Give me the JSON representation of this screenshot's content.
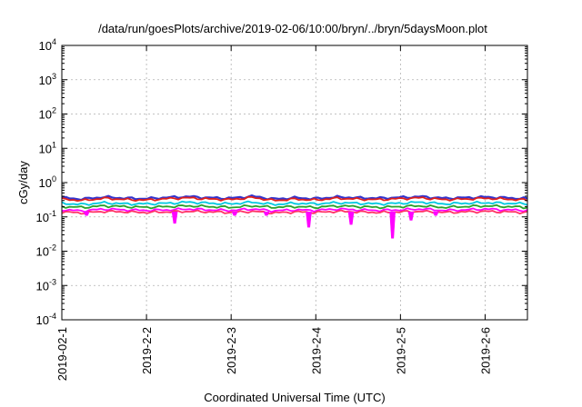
{
  "chart_data": {
    "type": "line",
    "title": "/data/run/goesPlots/archive/2019-02-06/10:00/bryn/../bryn/5daysMoon.plot",
    "xlabel": "Coordinated Universal Time (UTC)",
    "ylabel": "cGy/day",
    "yscale": "log",
    "ylim": [
      0.0001,
      10000
    ],
    "xlim": [
      "2019-02-01T00:00",
      "2019-02-06T12:00"
    ],
    "grid": true,
    "y_ticks": [
      {
        "base": "10",
        "exp": "-4",
        "value": 0.0001
      },
      {
        "base": "10",
        "exp": "-3",
        "value": 0.001
      },
      {
        "base": "10",
        "exp": "-2",
        "value": 0.01
      },
      {
        "base": "10",
        "exp": "-1",
        "value": 0.1
      },
      {
        "base": "10",
        "exp": "0",
        "value": 1
      },
      {
        "base": "10",
        "exp": "1",
        "value": 10
      },
      {
        "base": "10",
        "exp": "2",
        "value": 100
      },
      {
        "base": "10",
        "exp": "3",
        "value": 1000
      },
      {
        "base": "10",
        "exp": "4",
        "value": 10000
      }
    ],
    "x_ticks": [
      {
        "label": "2019-02-1",
        "value": "2019-02-01T00:00"
      },
      {
        "label": "2019-2-2",
        "value": "2019-02-02T00:00"
      },
      {
        "label": "2019-2-3",
        "value": "2019-02-03T00:00"
      },
      {
        "label": "2019-2-4",
        "value": "2019-02-04T00:00"
      },
      {
        "label": "2019-2-5",
        "value": "2019-02-05T00:00"
      },
      {
        "label": "2019-2-6",
        "value": "2019-02-06T00:00"
      }
    ],
    "x": [
      "2019-02-01T00:00",
      "2019-02-01T06:00",
      "2019-02-01T12:00",
      "2019-02-01T18:00",
      "2019-02-02T00:00",
      "2019-02-02T06:00",
      "2019-02-02T12:00",
      "2019-02-02T18:00",
      "2019-02-03T00:00",
      "2019-02-03T06:00",
      "2019-02-03T12:00",
      "2019-02-03T18:00",
      "2019-02-04T00:00",
      "2019-02-04T06:00",
      "2019-02-04T12:00",
      "2019-02-04T18:00",
      "2019-02-05T00:00",
      "2019-02-05T06:00",
      "2019-02-05T12:00",
      "2019-02-05T18:00",
      "2019-02-06T00:00",
      "2019-02-06T06:00",
      "2019-02-06T12:00"
    ],
    "series": [
      {
        "color": "#3333cc",
        "values": [
          0.36,
          0.33,
          0.38,
          0.35,
          0.34,
          0.37,
          0.39,
          0.36,
          0.35,
          0.4,
          0.33,
          0.36,
          0.34,
          0.38,
          0.36,
          0.35,
          0.37,
          0.39,
          0.35,
          0.36,
          0.38,
          0.36,
          0.34
        ]
      },
      {
        "color": "#e0201b",
        "values": [
          0.33,
          0.3,
          0.35,
          0.32,
          0.31,
          0.34,
          0.36,
          0.33,
          0.32,
          0.37,
          0.3,
          0.33,
          0.31,
          0.35,
          0.33,
          0.32,
          0.34,
          0.36,
          0.32,
          0.33,
          0.35,
          0.33,
          0.31
        ]
      },
      {
        "color": "#00c8e0",
        "values": [
          0.25,
          0.23,
          0.26,
          0.24,
          0.24,
          0.25,
          0.27,
          0.25,
          0.24,
          0.27,
          0.23,
          0.25,
          0.24,
          0.26,
          0.25,
          0.24,
          0.25,
          0.27,
          0.24,
          0.25,
          0.26,
          0.25,
          0.24
        ]
      },
      {
        "color": "#2aa02a",
        "values": [
          0.2,
          0.19,
          0.21,
          0.2,
          0.19,
          0.2,
          0.21,
          0.2,
          0.19,
          0.21,
          0.19,
          0.2,
          0.19,
          0.21,
          0.2,
          0.19,
          0.2,
          0.21,
          0.19,
          0.2,
          0.21,
          0.2,
          0.19
        ]
      },
      {
        "color": "#ff00ff",
        "values": [
          0.16,
          0.15,
          0.17,
          0.16,
          0.155,
          0.16,
          0.17,
          0.16,
          0.155,
          0.17,
          0.15,
          0.16,
          0.155,
          0.17,
          0.16,
          0.155,
          0.16,
          0.17,
          0.155,
          0.16,
          0.17,
          0.16,
          0.155
        ]
      },
      {
        "color": "#ff3366",
        "values": [
          0.14,
          0.13,
          0.145,
          0.14,
          0.135,
          0.14,
          0.145,
          0.14,
          0.135,
          0.145,
          0.13,
          0.14,
          0.135,
          0.145,
          0.14,
          0.135,
          0.14,
          0.145,
          0.135,
          0.14,
          0.145,
          0.14,
          0.135
        ]
      }
    ],
    "dips": [
      {
        "x": "2019-02-01T07:00",
        "value": 0.11
      },
      {
        "x": "2019-02-02T08:00",
        "value": 0.065
      },
      {
        "x": "2019-02-03T01:00",
        "value": 0.11
      },
      {
        "x": "2019-02-03T10:00",
        "value": 0.11
      },
      {
        "x": "2019-02-03T22:00",
        "value": 0.05
      },
      {
        "x": "2019-02-04T10:00",
        "value": 0.06
      },
      {
        "x": "2019-02-04T21:45",
        "value": 0.024
      },
      {
        "x": "2019-02-05T03:00",
        "value": 0.08
      },
      {
        "x": "2019-02-05T10:00",
        "value": 0.11
      }
    ]
  }
}
